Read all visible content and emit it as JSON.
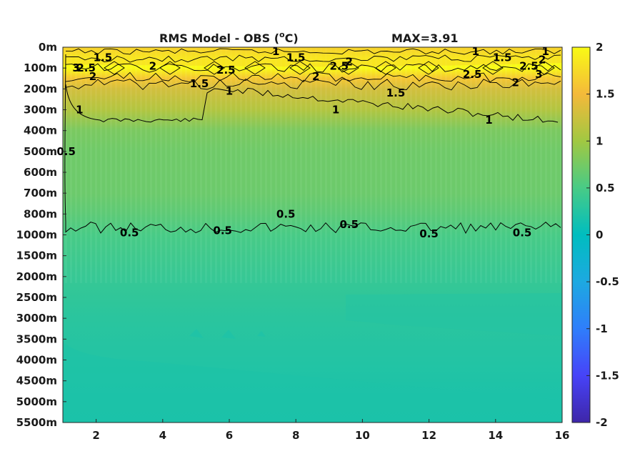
{
  "chart_data": {
    "type": "heatmap",
    "title": "RMS Model - OBS (",
    "title_superscript": "o",
    "title_unit": "C)",
    "max_label": "MAX=3.91",
    "x_ticks": [
      2,
      4,
      6,
      8,
      10,
      12,
      14,
      16
    ],
    "xlim": [
      1,
      16
    ],
    "y_ticks": [
      "0m",
      "100m",
      "200m",
      "300m",
      "400m",
      "500m",
      "600m",
      "700m",
      "800m",
      "1000m",
      "1500m",
      "2000m",
      "2500m",
      "3000m",
      "3500m",
      "4000m",
      "4500m",
      "5000m",
      "5500m"
    ],
    "colorbar_ticks": [
      2,
      1.5,
      1,
      0.5,
      0,
      -0.5,
      -1,
      -1.5,
      -2
    ],
    "colorbar_range": [
      -2,
      2
    ],
    "colormap": [
      "#3e26a8",
      "#4743f8",
      "#2f7efb",
      "#1da9e1",
      "#00bdbf",
      "#48cb86",
      "#a1c842",
      "#f4b93a",
      "#f9fb15"
    ],
    "contour_levels": [
      0.5,
      1,
      1.5,
      2,
      2.5,
      3
    ],
    "depth_profile": [
      {
        "depth": "0m",
        "value": 1.7
      },
      {
        "depth": "50m",
        "value": 2.3
      },
      {
        "depth": "100m",
        "value": 2.1
      },
      {
        "depth": "150m",
        "value": 1.6
      },
      {
        "depth": "200m",
        "value": 1.3
      },
      {
        "depth": "300m",
        "value": 1.1
      },
      {
        "depth": "400m",
        "value": 0.78
      },
      {
        "depth": "500m",
        "value": 0.72
      },
      {
        "depth": "700m",
        "value": 0.7
      },
      {
        "depth": "800m",
        "value": 0.62
      },
      {
        "depth": "1000m",
        "value": 0.5
      },
      {
        "depth": "1500m",
        "value": 0.44
      },
      {
        "depth": "2000m",
        "value": 0.38
      },
      {
        "depth": "2500m",
        "value": 0.33
      },
      {
        "depth": "3000m",
        "value": 0.29
      },
      {
        "depth": "4000m",
        "value": 0.24
      },
      {
        "depth": "5000m",
        "value": 0.19
      },
      {
        "depth": "5500m",
        "value": 0.18
      }
    ],
    "contour_labels": [
      {
        "text": "1.5",
        "x": 2.2,
        "depth": "50m"
      },
      {
        "text": "1",
        "x": 7.4,
        "depth": "20m"
      },
      {
        "text": "1.5",
        "x": 8.0,
        "depth": "50m"
      },
      {
        "text": "1",
        "x": 13.4,
        "depth": "20m"
      },
      {
        "text": "1.5",
        "x": 14.2,
        "depth": "50m"
      },
      {
        "text": "1",
        "x": 15.5,
        "depth": "20m"
      },
      {
        "text": "2",
        "x": 15.4,
        "depth": "60m"
      },
      {
        "text": "3",
        "x": 1.4,
        "depth": "100m"
      },
      {
        "text": "2.5",
        "x": 1.7,
        "depth": "100m"
      },
      {
        "text": "2",
        "x": 1.9,
        "depth": "140m"
      },
      {
        "text": "2",
        "x": 3.7,
        "depth": "90m"
      },
      {
        "text": "2.5",
        "x": 5.9,
        "depth": "110m"
      },
      {
        "text": "2.5",
        "x": 9.3,
        "depth": "90m"
      },
      {
        "text": "2",
        "x": 9.6,
        "depth": "70m"
      },
      {
        "text": "2",
        "x": 8.6,
        "depth": "140m"
      },
      {
        "text": "2.5",
        "x": 13.3,
        "depth": "130m"
      },
      {
        "text": "2.5",
        "x": 15.0,
        "depth": "90m"
      },
      {
        "text": "3",
        "x": 15.3,
        "depth": "130m"
      },
      {
        "text": "2",
        "x": 14.6,
        "depth": "170m"
      },
      {
        "text": "1.5",
        "x": 5.1,
        "depth": "175m"
      },
      {
        "text": "1",
        "x": 6.0,
        "depth": "210m"
      },
      {
        "text": "1.5",
        "x": 11.0,
        "depth": "220m"
      },
      {
        "text": "1",
        "x": 1.5,
        "depth": "300m"
      },
      {
        "text": "1",
        "x": 9.2,
        "depth": "300m"
      },
      {
        "text": "1",
        "x": 13.8,
        "depth": "350m"
      },
      {
        "text": "0.5",
        "x": 1.1,
        "depth": "500m"
      },
      {
        "text": "0.5",
        "x": 3.0,
        "depth": "980m"
      },
      {
        "text": "0.5",
        "x": 5.8,
        "depth": "960m"
      },
      {
        "text": "0.5",
        "x": 7.7,
        "depth": "800m"
      },
      {
        "text": "0.5",
        "x": 9.6,
        "depth": "900m"
      },
      {
        "text": "0.5",
        "x": 12.0,
        "depth": "990m"
      },
      {
        "text": "0.5",
        "x": 14.8,
        "depth": "980m"
      }
    ]
  }
}
